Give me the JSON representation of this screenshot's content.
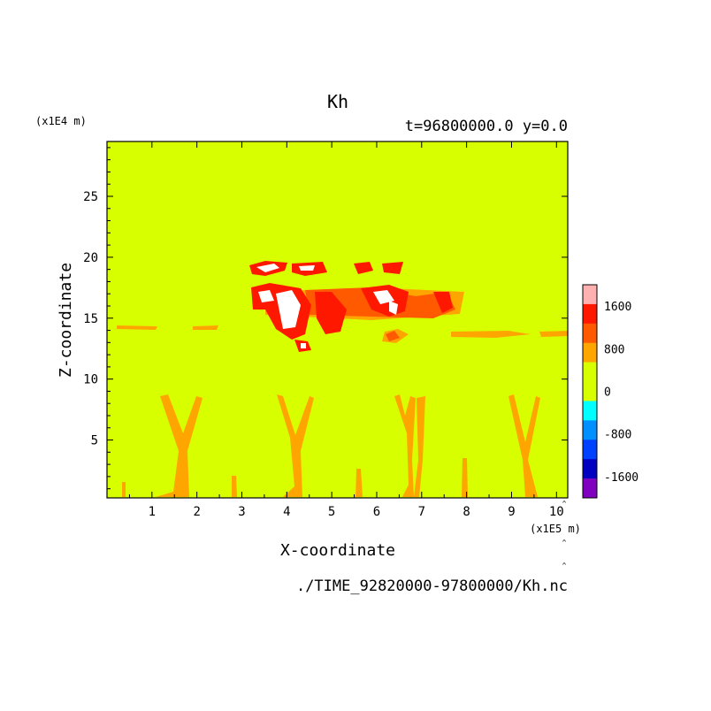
{
  "chart_data": {
    "type": "heatmap",
    "title": "Kh",
    "subtitle": "t=96800000.0 y=0.0",
    "xlabel": "X-coordinate",
    "ylabel": "Z-coordinate",
    "x_unit": "(x1E5 m)",
    "y_unit": "(x1E4 m)",
    "xlim": [
      0,
      10.25
    ],
    "ylim": [
      0.25,
      29.5
    ],
    "x_ticks": [
      "1",
      "2",
      "3",
      "4",
      "5",
      "6",
      "7",
      "8",
      "9",
      "10"
    ],
    "x_tick_values": [
      1,
      2,
      3,
      4,
      5,
      6,
      7,
      8,
      9,
      10
    ],
    "y_ticks": [
      "5",
      "10",
      "15",
      "20",
      "25"
    ],
    "y_tick_values": [
      5,
      10,
      15,
      20,
      25
    ],
    "background_level": "0",
    "colorbar": {
      "labels": [
        "1600",
        "800",
        "0",
        "-800",
        "-1600"
      ],
      "label_values": [
        1600,
        800,
        0,
        -800,
        -1600
      ],
      "min": -2000,
      "max": 2000,
      "step": 400,
      "colors_top_to_bottom": [
        "#ffb0b0",
        "#ff1800",
        "#ff5a00",
        "#ffa500",
        "#d8ff00",
        "#d8ff00",
        "#00ffff",
        "#0090ff",
        "#0040ff",
        "#0000c0",
        "#8000c0"
      ]
    },
    "level_colors": {
      "0": "#d8ff00",
      "400": "#ffa500",
      "800": "#ff5a00",
      "1200": "#ff1800",
      "1600": "#ff1800",
      "2000": "#ffffff"
    },
    "footer": "./TIME_92820000-97800000/Kh.nc"
  }
}
